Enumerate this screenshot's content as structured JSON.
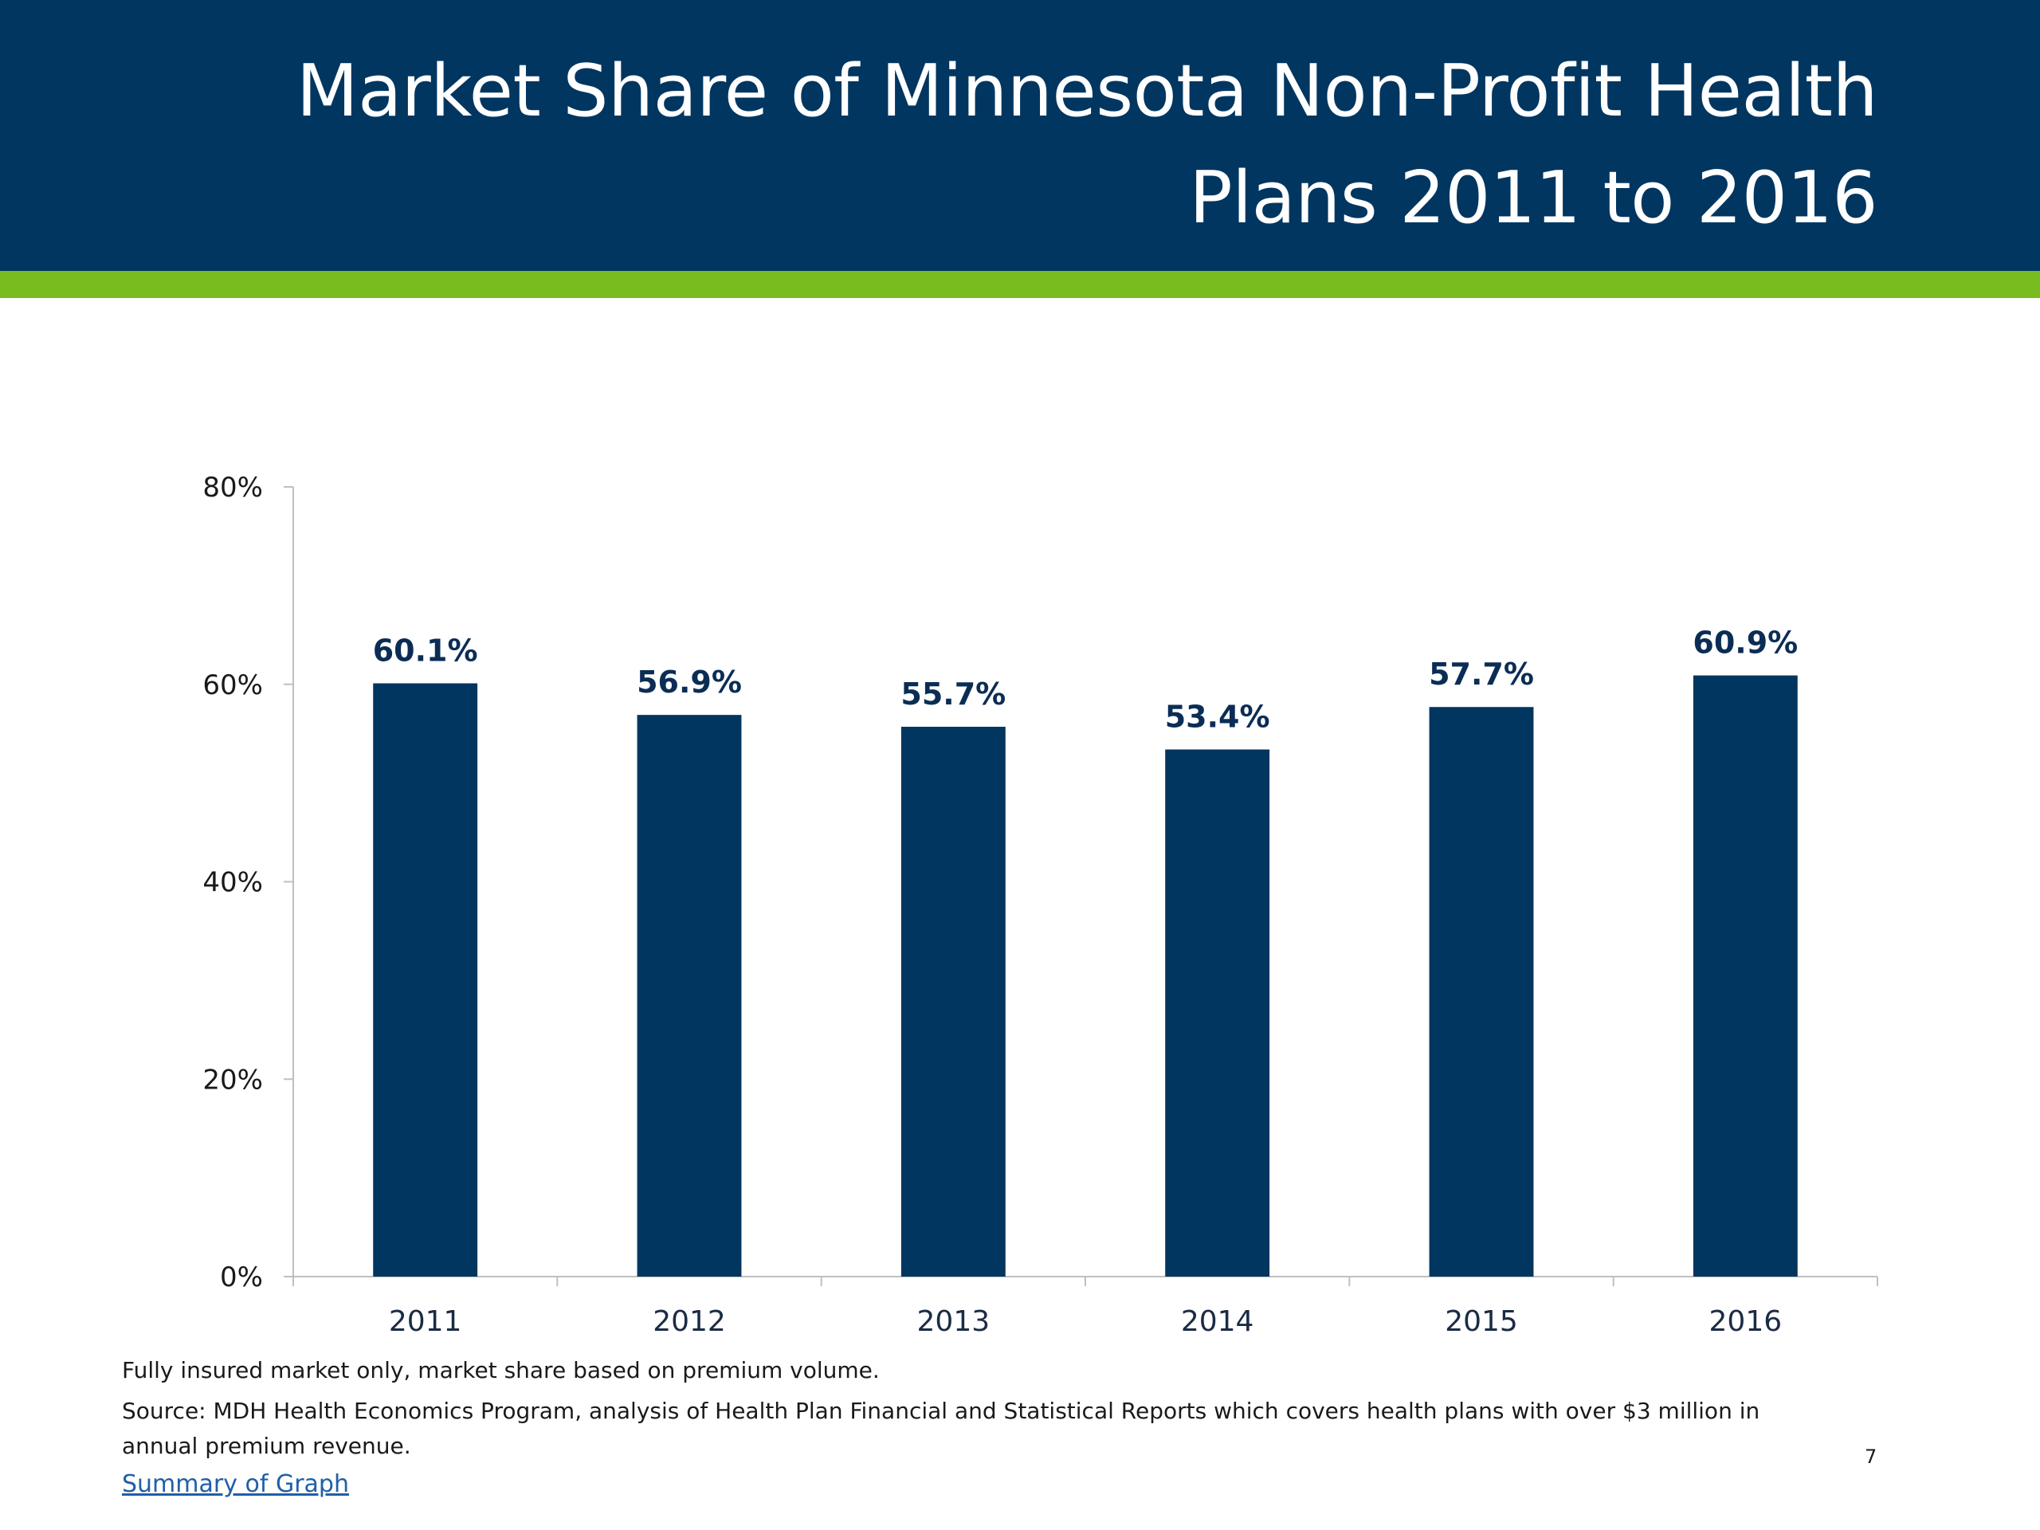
{
  "slide": {
    "title_line1": "Market Share of Minnesota Non-Profit Health",
    "title_line2": "Plans 2011 to 2016",
    "note": "Fully insured market only, market share based on premium volume.",
    "source": "Source: MDH Health Economics Program, analysis of Health Plan Financial and Statistical Reports which covers health plans with over $3 million in annual premium revenue.",
    "summary_link": "Summary of Graph",
    "page_number": "7"
  },
  "colors": {
    "header": "#003660",
    "accent": "#78BC20",
    "bar": "#003660"
  },
  "chart_data": {
    "type": "bar",
    "title": "",
    "xlabel": "",
    "ylabel": "",
    "categories": [
      "2011",
      "2012",
      "2013",
      "2014",
      "2015",
      "2016"
    ],
    "values": [
      60.1,
      56.9,
      55.7,
      53.4,
      57.7,
      60.9
    ],
    "data_labels": [
      "60.1%",
      "56.9%",
      "55.7%",
      "53.4%",
      "57.7%",
      "60.9%"
    ],
    "yticks": [
      0,
      20,
      40,
      60,
      80
    ],
    "ytick_labels": [
      "0%",
      "20%",
      "40%",
      "60%",
      "80%"
    ],
    "ylim": [
      0,
      80
    ],
    "grid": false,
    "legend": "none"
  }
}
